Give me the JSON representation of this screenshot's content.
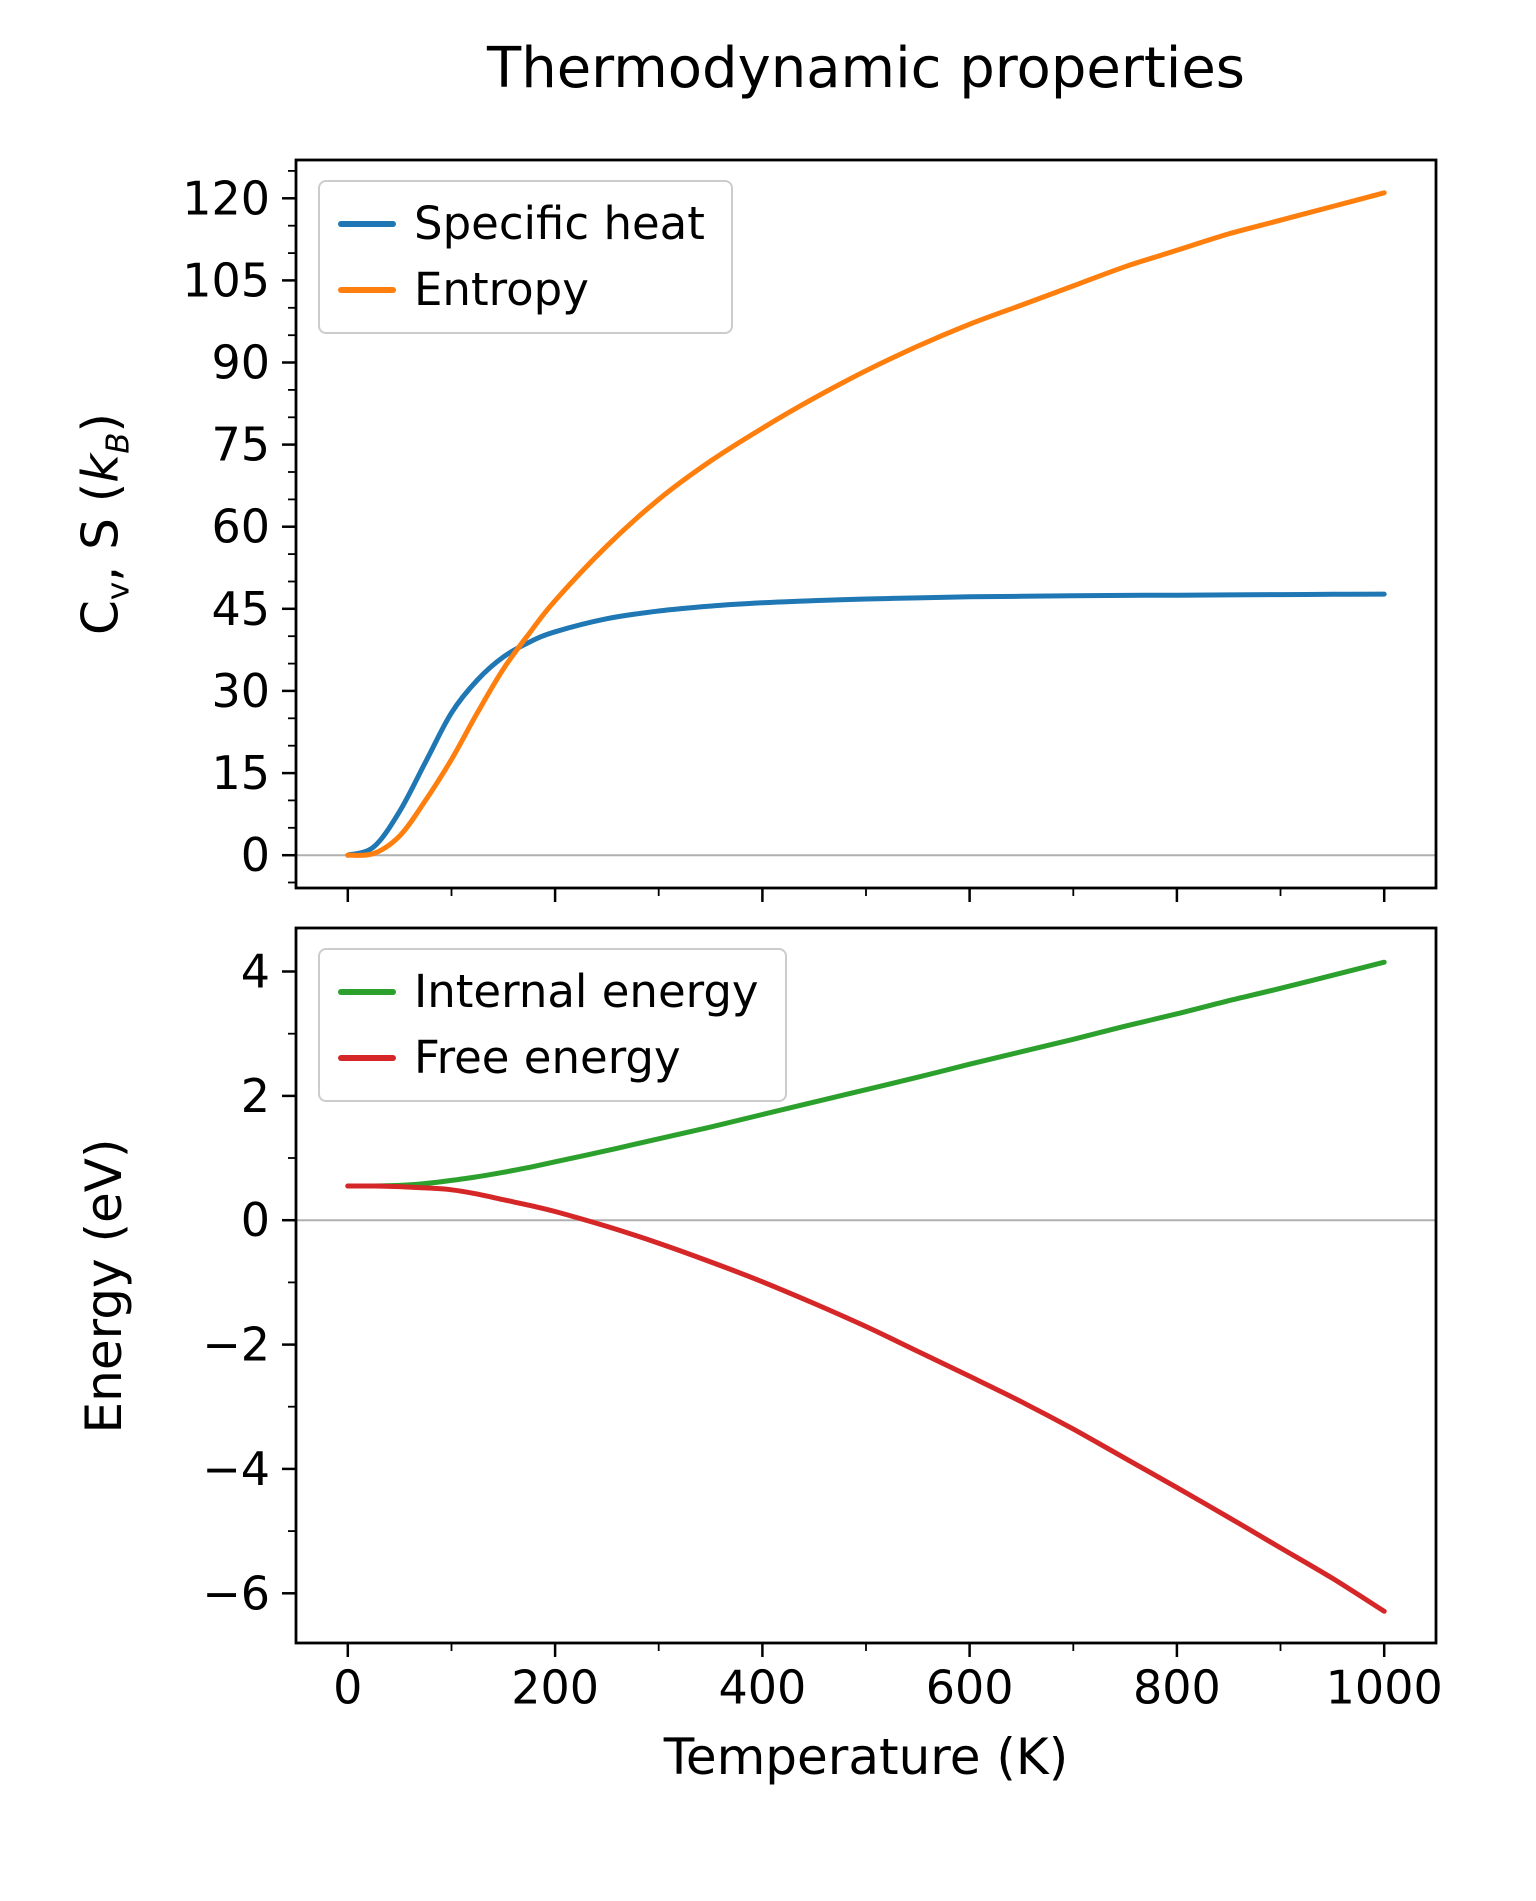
{
  "title": "Thermodynamic properties",
  "colors": {
    "axis": "#000000",
    "zero_line": "#b0b0b0",
    "legend_border": "#cccccc",
    "background": "#ffffff"
  },
  "chart_data": {
    "type": "line",
    "title": "Thermodynamic properties",
    "xlabel": "Temperature (K)",
    "xlim": [
      -50,
      1050
    ],
    "xticks": [
      0,
      200,
      400,
      600,
      800,
      1000
    ],
    "xminor_step": 100,
    "grid": false,
    "x": [
      0,
      25,
      50,
      75,
      100,
      125,
      150,
      175,
      200,
      250,
      300,
      350,
      400,
      450,
      500,
      550,
      600,
      650,
      700,
      750,
      800,
      850,
      900,
      950,
      1000
    ],
    "panels": [
      {
        "ylabel": "Cv, S (kB)",
        "ylabel_rich": {
          "p0": "C",
          "p1": "v",
          "p2": ", S (",
          "p3": "k",
          "p4": "B",
          "p5": ")"
        },
        "ylim": [
          -6,
          127
        ],
        "yticks": [
          0,
          15,
          30,
          45,
          60,
          75,
          90,
          105,
          120
        ],
        "yminor_step": 5,
        "zero_line": true,
        "legend_position": "upper left",
        "series": [
          {
            "name": "Specific heat",
            "color": "#1f77b4",
            "values": [
              0,
              1.5,
              8,
              17,
              26,
              32,
              36.2,
              38.9,
              40.8,
              43.2,
              44.6,
              45.5,
              46.1,
              46.5,
              46.8,
              47.0,
              47.2,
              47.3,
              47.4,
              47.45,
              47.5,
              47.55,
              47.6,
              47.65,
              47.7
            ]
          },
          {
            "name": "Entropy",
            "color": "#ff7f0e",
            "values": [
              0,
              0.3,
              3.5,
              10,
              17.5,
              26,
              34,
              40.5,
              46.5,
              56.5,
              65,
              72,
              78,
              83.5,
              88.5,
              93,
              97,
              100.5,
              104,
              107.5,
              110.5,
              113.5,
              116,
              118.5,
              121
            ]
          }
        ]
      },
      {
        "ylabel": "Energy (eV)",
        "ylim": [
          -6.8,
          4.7
        ],
        "yticks": [
          -6,
          -4,
          -2,
          0,
          2,
          4
        ],
        "yminor_step": 1,
        "zero_line": true,
        "legend_position": "upper left",
        "series": [
          {
            "name": "Internal energy",
            "color": "#2ca02c",
            "values": [
              0.55,
              0.55,
              0.56,
              0.59,
              0.64,
              0.7,
              0.77,
              0.85,
              0.94,
              1.12,
              1.31,
              1.5,
              1.7,
              1.9,
              2.1,
              2.3,
              2.51,
              2.71,
              2.91,
              3.12,
              3.32,
              3.53,
              3.73,
              3.94,
              4.15
            ]
          },
          {
            "name": "Free energy",
            "color": "#d62728",
            "values": [
              0.55,
              0.55,
              0.54,
              0.52,
              0.49,
              0.42,
              0.33,
              0.24,
              0.14,
              -0.1,
              -0.37,
              -0.67,
              -0.99,
              -1.34,
              -1.71,
              -2.11,
              -2.51,
              -2.92,
              -3.36,
              -3.83,
              -4.3,
              -4.78,
              -5.27,
              -5.76,
              -6.29
            ]
          }
        ]
      }
    ]
  }
}
